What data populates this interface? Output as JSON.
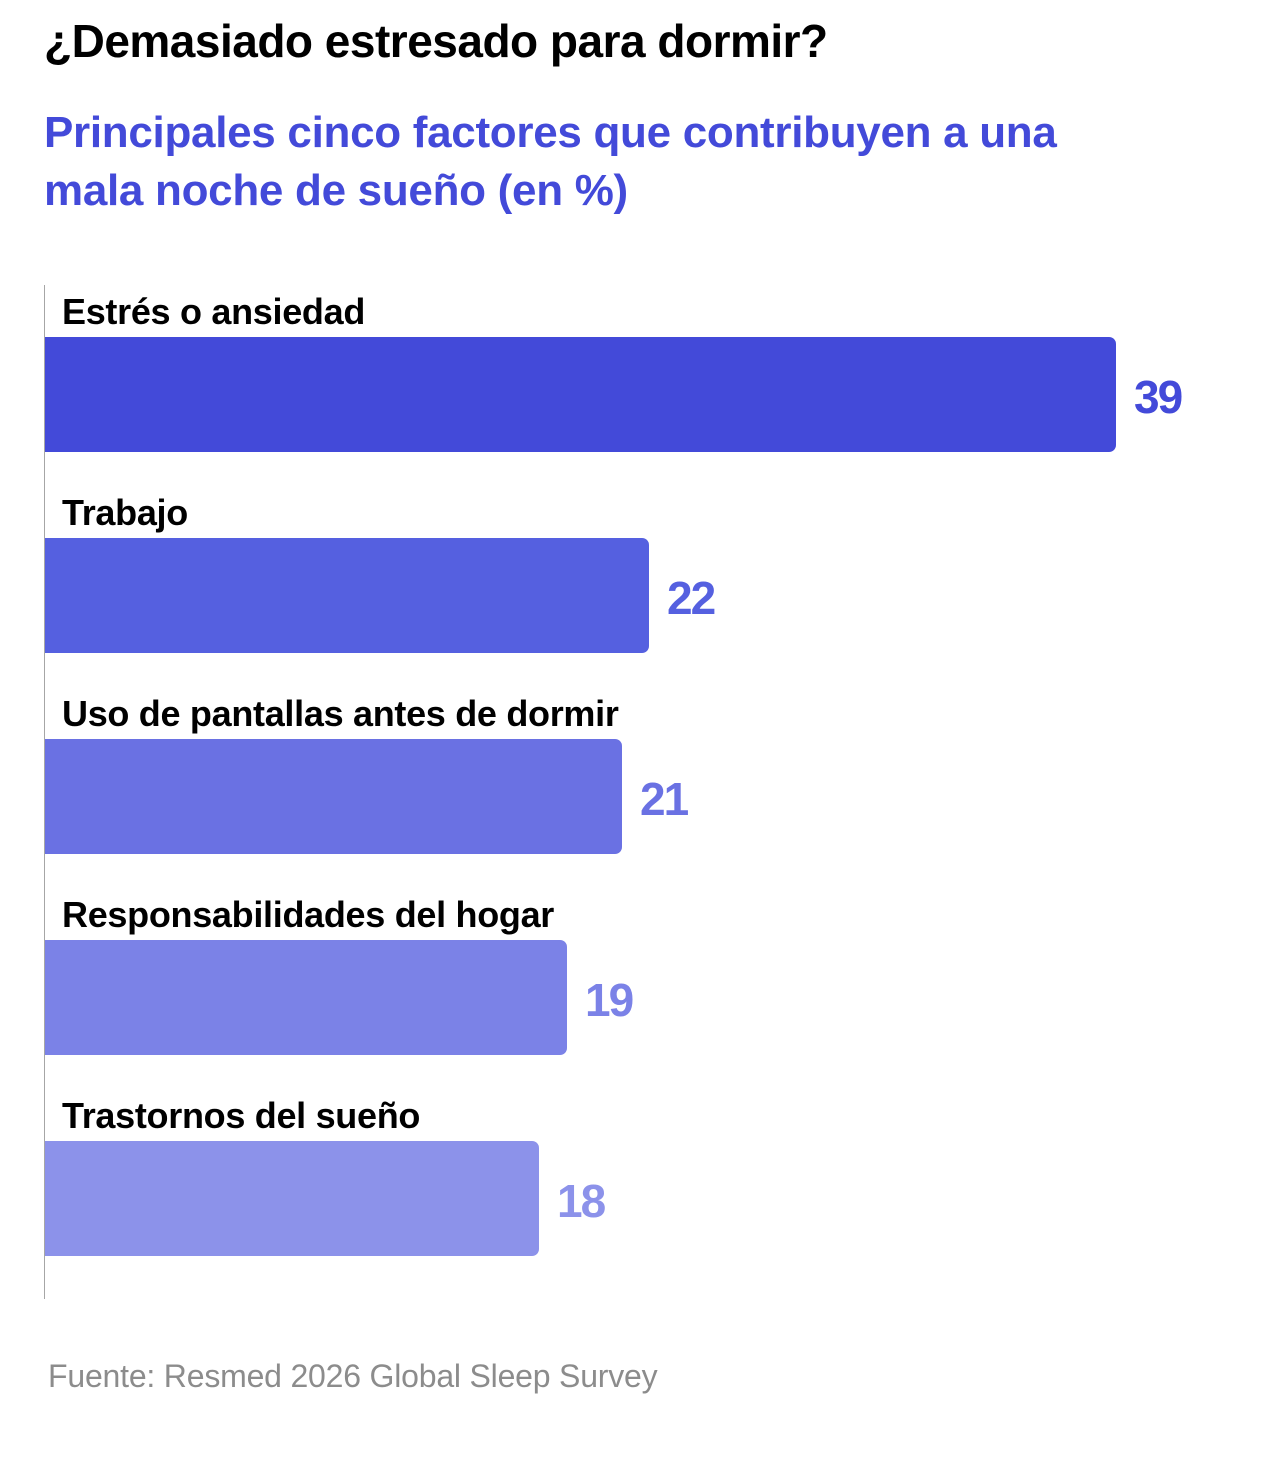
{
  "chart_data": {
    "type": "bar",
    "orientation": "horizontal",
    "title": "¿Demasiado estresado para dormir?",
    "subtitle": "Principales cinco factores que contribuyen a una mala noche de sueño (en %)",
    "categories": [
      "Estrés o ansiedad",
      "Trabajo",
      "Uso de pantallas antes de dormir",
      "Responsabilidades del hogar",
      "Trastornos del sueño"
    ],
    "values": [
      39,
      22,
      21,
      19,
      18
    ],
    "value_labels": [
      "39",
      "22",
      "21",
      "19",
      "18"
    ],
    "colors": [
      "#434ad9",
      "#5560e0",
      "#6a71e3",
      "#7b82e7",
      "#8c92ea"
    ],
    "xlabel": "",
    "ylabel": "",
    "xlim": [
      0,
      40
    ],
    "grid": false,
    "legend": "none"
  },
  "source": "Fuente: Resmed 2026 Global Sleep Survey"
}
